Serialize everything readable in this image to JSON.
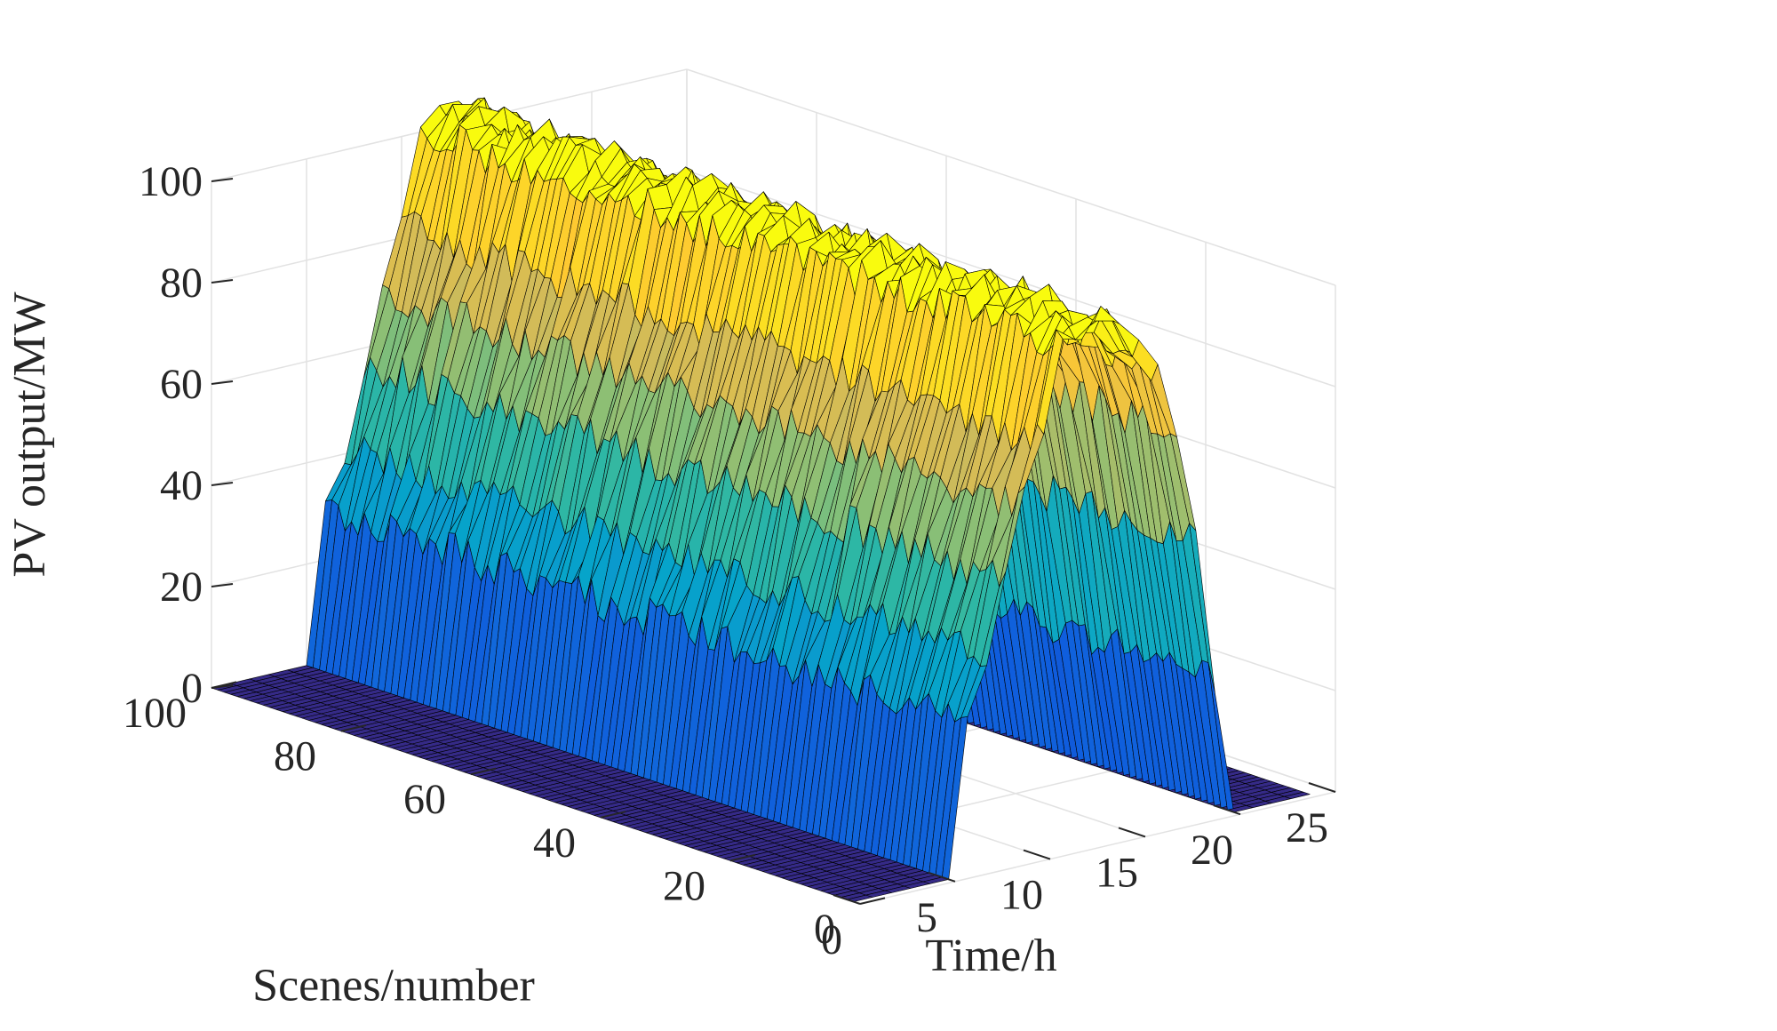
{
  "chart_data": {
    "type": "surface3d",
    "title": "",
    "xlabel": "Time/h",
    "ylabel": "Scenes/number",
    "zlabel": "PV output/MW",
    "xlim": [
      0,
      25
    ],
    "ylim": [
      0,
      100
    ],
    "zlim": [
      0,
      100
    ],
    "xticks": [
      0,
      5,
      10,
      15,
      20,
      25
    ],
    "yticks": [
      0,
      20,
      40,
      60,
      80,
      100
    ],
    "zticks": [
      0,
      20,
      40,
      60,
      80,
      100
    ],
    "x_tick_labels": [
      "0",
      "5",
      "10",
      "15",
      "20",
      "25"
    ],
    "y_tick_labels": [
      "0",
      "20",
      "40",
      "60",
      "80",
      "100"
    ],
    "z_tick_labels": [
      "0",
      "20",
      "40",
      "60",
      "80",
      "100"
    ],
    "grid": true,
    "box": false,
    "colormap": "parula",
    "colormap_stops": [
      "#352a87",
      "#0f5cdd",
      "#1481d6",
      "#06a4ca",
      "#2eb7a4",
      "#87bf77",
      "#d1bb59",
      "#fec832",
      "#f9fb0e"
    ],
    "edge_color": "#000000",
    "x": [
      0,
      1,
      2,
      3,
      4,
      5,
      6,
      7,
      8,
      9,
      10,
      11,
      12,
      13,
      14,
      15,
      16,
      17,
      18,
      19,
      20,
      21,
      22,
      23,
      24
    ],
    "scenes": {
      "start": 1,
      "end": 100,
      "step": 1
    },
    "mean_profile": [
      0,
      0,
      0,
      0,
      0,
      0,
      30,
      42,
      57,
      70,
      82,
      100,
      103,
      103,
      100,
      95,
      90,
      78,
      55,
      27,
      0,
      0,
      0,
      0,
      0
    ],
    "scene_noise_amplitude": 4
  }
}
